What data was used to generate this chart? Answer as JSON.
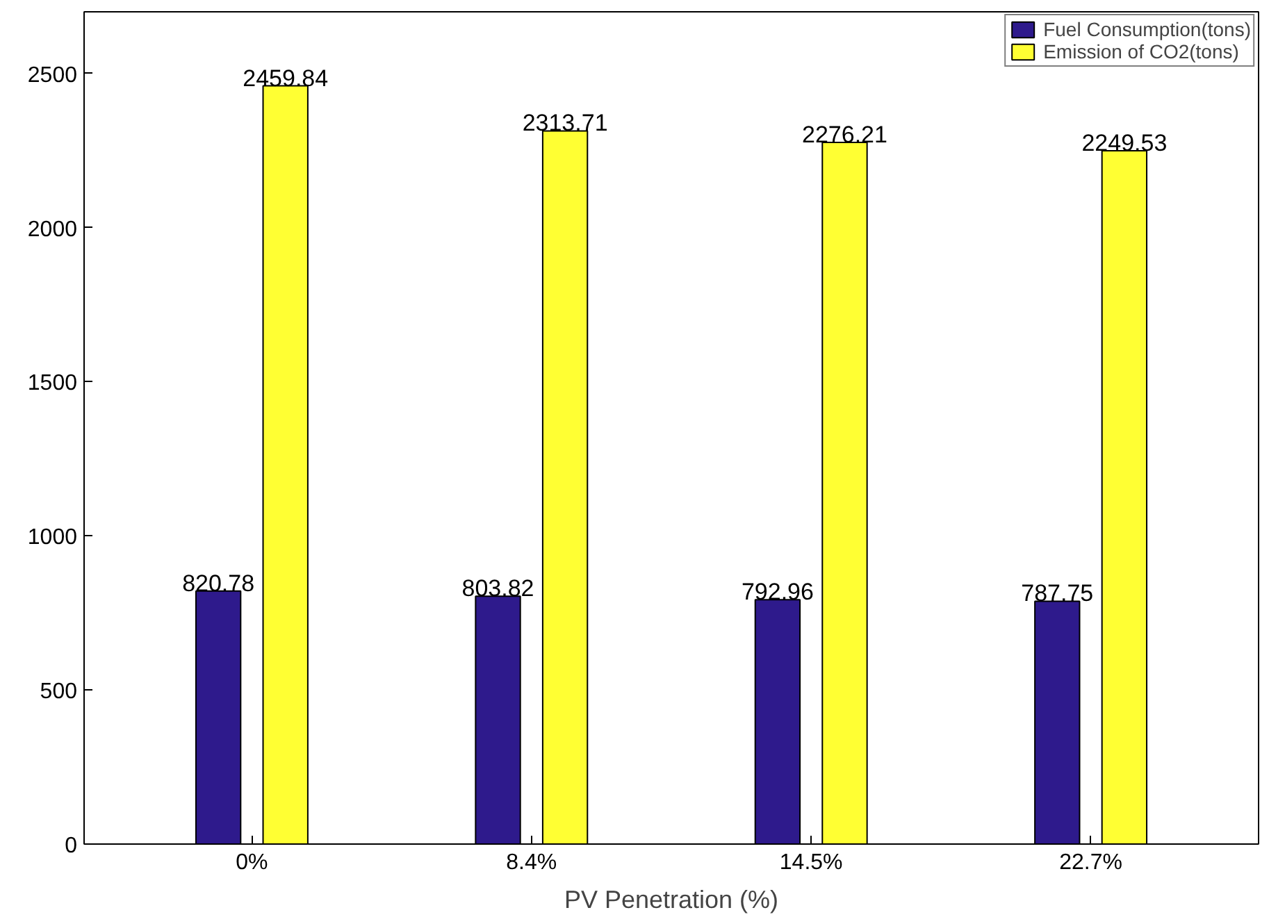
{
  "chart_data": {
    "type": "bar",
    "xlabel": "PV Penetration (%)",
    "categories": [
      "0%",
      "8.4%",
      "14.5%",
      "22.7%"
    ],
    "series": [
      {
        "name": "Fuel Consumption(tons)",
        "color": "#2e1a8c",
        "values": [
          820.78,
          803.82,
          792.96,
          787.75
        ]
      },
      {
        "name": "Emission of CO2(tons)",
        "color": "#ffff33",
        "values": [
          2459.84,
          2313.71,
          2276.21,
          2249.53
        ]
      }
    ],
    "ylim": [
      0,
      2700
    ],
    "yticks": [
      0,
      500,
      1000,
      1500,
      2000,
      2500
    ],
    "grid": false,
    "legend": "top right",
    "data_labels": true
  }
}
